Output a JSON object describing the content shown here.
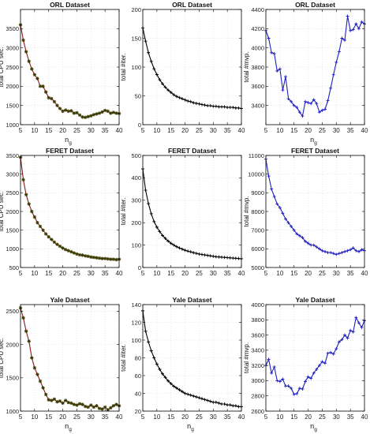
{
  "chart_data": [
    {
      "id": "orl-cpu",
      "type": "line",
      "title": "ORL Dataset",
      "xlabel": "n",
      "xlabel_sub": "g",
      "ylabel": "total CPU sec.",
      "xlim": [
        5,
        40
      ],
      "ylim": [
        1000,
        4000
      ],
      "xticks": [
        5,
        10,
        15,
        20,
        25,
        30,
        35,
        40
      ],
      "yticks": [
        1000,
        1500,
        2000,
        2500,
        3000,
        3500
      ],
      "color": "#8b1a1a",
      "marker": "star",
      "grid": true,
      "x": [
        5,
        6,
        7,
        8,
        9,
        10,
        11,
        12,
        13,
        14,
        15,
        16,
        17,
        18,
        19,
        20,
        21,
        22,
        23,
        24,
        25,
        26,
        27,
        28,
        29,
        30,
        31,
        32,
        33,
        34,
        35,
        36,
        37,
        38,
        39,
        40
      ],
      "y": [
        3600,
        3200,
        2900,
        2650,
        2450,
        2300,
        2200,
        2000,
        2000,
        1850,
        1700,
        1680,
        1600,
        1500,
        1420,
        1350,
        1380,
        1350,
        1360,
        1300,
        1310,
        1250,
        1200,
        1190,
        1210,
        1230,
        1260,
        1280,
        1300,
        1330,
        1370,
        1350,
        1300,
        1320,
        1300,
        1290
      ]
    },
    {
      "id": "orl-iter",
      "type": "line",
      "title": "ORL Dataset",
      "xlabel": "",
      "ylabel": "total #iter.",
      "xlim": [
        5,
        40
      ],
      "ylim": [
        0,
        200
      ],
      "xticks": [
        5,
        10,
        15,
        20,
        25,
        30,
        35,
        40
      ],
      "yticks": [
        0,
        50,
        100,
        150,
        200
      ],
      "color": "#000000",
      "marker": "plus",
      "grid": true,
      "x": [
        5,
        6,
        7,
        8,
        9,
        10,
        11,
        12,
        13,
        14,
        15,
        16,
        17,
        18,
        19,
        20,
        21,
        22,
        23,
        24,
        25,
        26,
        27,
        28,
        29,
        30,
        31,
        32,
        33,
        34,
        35,
        36,
        37,
        38,
        39,
        40
      ],
      "y": [
        168,
        145,
        125,
        110,
        97,
        87,
        78,
        71,
        65,
        60,
        56,
        52,
        49,
        47,
        45,
        43,
        41,
        40,
        38,
        37,
        36,
        35,
        34,
        33,
        33,
        32,
        32,
        31,
        31,
        31,
        30,
        30,
        30,
        29,
        29,
        28
      ]
    },
    {
      "id": "orl-mvp",
      "type": "line",
      "title": "ORL Dataset",
      "xlabel": "n",
      "xlabel_sub": "g",
      "ylabel": "total #mvp.",
      "xlim": [
        5,
        40
      ],
      "ylim": [
        3200,
        4400
      ],
      "xticks": [
        5,
        10,
        15,
        20,
        25,
        30,
        35,
        40
      ],
      "yticks": [
        3400,
        3600,
        3800,
        4000,
        4200,
        4400
      ],
      "color": "#1f1fbf",
      "marker": "plus",
      "grid": true,
      "x": [
        5,
        6,
        7,
        8,
        9,
        10,
        11,
        12,
        13,
        14,
        15,
        16,
        17,
        18,
        19,
        20,
        21,
        22,
        23,
        24,
        25,
        26,
        27,
        28,
        29,
        30,
        31,
        32,
        33,
        34,
        35,
        36,
        37,
        38,
        39,
        40
      ],
      "y": [
        4180,
        4100,
        3950,
        3940,
        3760,
        3780,
        3560,
        3700,
        3470,
        3440,
        3400,
        3380,
        3330,
        3290,
        3440,
        3430,
        3420,
        3460,
        3420,
        3330,
        3350,
        3360,
        3450,
        3580,
        3720,
        3850,
        3960,
        4100,
        4080,
        4330,
        4180,
        4190,
        4250,
        4200,
        4270,
        4250
      ]
    },
    {
      "id": "feret-cpu",
      "type": "line",
      "title": "FERET Dataset",
      "xlabel": "",
      "ylabel": "total CPU sec.",
      "xlim": [
        5,
        40
      ],
      "ylim": [
        500,
        3500
      ],
      "xticks": [
        5,
        10,
        15,
        20,
        25,
        30,
        35,
        40
      ],
      "yticks": [
        500,
        1000,
        1500,
        2000,
        2500,
        3000,
        3500
      ],
      "color": "#8b1a1a",
      "marker": "star",
      "grid": true,
      "x": [
        5,
        6,
        7,
        8,
        9,
        10,
        11,
        12,
        13,
        14,
        15,
        16,
        17,
        18,
        19,
        20,
        21,
        22,
        23,
        24,
        25,
        26,
        27,
        28,
        29,
        30,
        31,
        32,
        33,
        34,
        35,
        36,
        37,
        38,
        39,
        40
      ],
      "y": [
        3450,
        2850,
        2450,
        2200,
        2000,
        1850,
        1700,
        1600,
        1500,
        1400,
        1320,
        1250,
        1180,
        1120,
        1070,
        1020,
        980,
        950,
        920,
        890,
        860,
        840,
        830,
        810,
        800,
        780,
        770,
        760,
        750,
        740,
        740,
        730,
        720,
        720,
        710,
        720
      ]
    },
    {
      "id": "feret-iter",
      "type": "line",
      "title": "FERET Dataset",
      "xlabel": "",
      "ylabel": "total #iter.",
      "xlim": [
        5,
        40
      ],
      "ylim": [
        0,
        500
      ],
      "xticks": [
        5,
        10,
        15,
        20,
        25,
        30,
        35,
        40
      ],
      "yticks": [
        0,
        100,
        200,
        300,
        400,
        500
      ],
      "color": "#000000",
      "marker": "plus",
      "grid": true,
      "x": [
        5,
        6,
        7,
        8,
        9,
        10,
        11,
        12,
        13,
        14,
        15,
        16,
        17,
        18,
        19,
        20,
        21,
        22,
        23,
        24,
        25,
        26,
        27,
        28,
        29,
        30,
        31,
        32,
        33,
        34,
        35,
        36,
        37,
        38,
        39,
        40
      ],
      "y": [
        440,
        345,
        285,
        240,
        205,
        180,
        160,
        143,
        130,
        118,
        108,
        100,
        93,
        87,
        82,
        77,
        73,
        70,
        66,
        63,
        60,
        58,
        56,
        54,
        52,
        50,
        48,
        47,
        46,
        45,
        44,
        43,
        42,
        41,
        40,
        39
      ]
    },
    {
      "id": "feret-mvp",
      "type": "line",
      "title": "FERET Dataset",
      "xlabel": "",
      "ylabel": "total #mvp.",
      "xlim": [
        5,
        40
      ],
      "ylim": [
        5000,
        11000
      ],
      "xticks": [
        5,
        10,
        15,
        20,
        25,
        30,
        35,
        40
      ],
      "yticks": [
        5000,
        6000,
        7000,
        8000,
        9000,
        10000,
        11000
      ],
      "color": "#1f1fbf",
      "marker": "plus",
      "grid": true,
      "x": [
        5,
        6,
        7,
        8,
        9,
        10,
        11,
        12,
        13,
        14,
        15,
        16,
        17,
        18,
        19,
        20,
        21,
        22,
        23,
        24,
        25,
        26,
        27,
        28,
        29,
        30,
        31,
        32,
        33,
        34,
        35,
        36,
        37,
        38,
        39,
        40
      ],
      "y": [
        10800,
        9900,
        9200,
        8800,
        8400,
        8200,
        7900,
        7600,
        7400,
        7200,
        7000,
        6800,
        6700,
        6600,
        6400,
        6300,
        6200,
        6200,
        6100,
        6000,
        5900,
        5850,
        5800,
        5800,
        5750,
        5700,
        5750,
        5800,
        5850,
        5900,
        5950,
        6050,
        5900,
        5850,
        5950,
        5900
      ]
    },
    {
      "id": "yale-cpu",
      "type": "line",
      "title": "Yale Dataset",
      "xlabel": "n",
      "xlabel_sub": "g",
      "ylabel": "total CPU sec.",
      "xlim": [
        5,
        40
      ],
      "ylim": [
        1000,
        2600
      ],
      "xticks": [
        5,
        10,
        15,
        20,
        25,
        30,
        35,
        40
      ],
      "yticks": [
        1000,
        1500,
        2000,
        2500
      ],
      "color": "#8b1a1a",
      "marker": "star",
      "grid": true,
      "x": [
        5,
        6,
        7,
        8,
        9,
        10,
        11,
        12,
        13,
        14,
        15,
        16,
        17,
        18,
        19,
        20,
        21,
        22,
        23,
        24,
        25,
        26,
        27,
        28,
        29,
        30,
        31,
        32,
        33,
        34,
        35,
        36,
        37,
        38,
        39,
        40
      ],
      "y": [
        2550,
        2400,
        2200,
        2050,
        1800,
        1650,
        1550,
        1450,
        1350,
        1250,
        1170,
        1160,
        1180,
        1140,
        1150,
        1120,
        1160,
        1130,
        1120,
        1100,
        1090,
        1110,
        1100,
        1070,
        1060,
        1090,
        1060,
        1080,
        1040,
        1030,
        1060,
        1020,
        1050,
        1080,
        1100,
        1080
      ]
    },
    {
      "id": "yale-iter",
      "type": "line",
      "title": "Yale Dataset",
      "xlabel": "n",
      "xlabel_sub": "g",
      "ylabel": "total #iter.",
      "xlim": [
        5,
        40
      ],
      "ylim": [
        20,
        140
      ],
      "xticks": [
        5,
        10,
        15,
        20,
        25,
        30,
        35,
        40
      ],
      "yticks": [
        20,
        40,
        60,
        80,
        100,
        120,
        140
      ],
      "color": "#000000",
      "marker": "plus",
      "grid": true,
      "x": [
        5,
        6,
        7,
        8,
        9,
        10,
        11,
        12,
        13,
        14,
        15,
        16,
        17,
        18,
        19,
        20,
        21,
        22,
        23,
        24,
        25,
        26,
        27,
        28,
        29,
        30,
        31,
        32,
        33,
        34,
        35,
        36,
        37,
        38,
        39,
        40
      ],
      "y": [
        133,
        110,
        98,
        88,
        80,
        73,
        67,
        62,
        58,
        54,
        51,
        48,
        46,
        44,
        42,
        40,
        39,
        38,
        37,
        36,
        35,
        34,
        33,
        32,
        31,
        30,
        30,
        29,
        28,
        28,
        27,
        27,
        26,
        26,
        25,
        25
      ]
    },
    {
      "id": "yale-mvp",
      "type": "line",
      "title": "Yale Dataset",
      "xlabel": "n",
      "xlabel_sub": "g",
      "ylabel": "total #mvp.",
      "xlim": [
        5,
        40
      ],
      "ylim": [
        2600,
        4000
      ],
      "xticks": [
        5,
        10,
        15,
        20,
        25,
        30,
        35,
        40
      ],
      "yticks": [
        2600,
        2800,
        3000,
        3200,
        3400,
        3600,
        3800,
        4000
      ],
      "color": "#1f1fbf",
      "marker": "plus",
      "grid": true,
      "x": [
        5,
        6,
        7,
        8,
        9,
        10,
        11,
        12,
        13,
        14,
        15,
        16,
        17,
        18,
        19,
        20,
        21,
        22,
        23,
        24,
        25,
        26,
        27,
        28,
        29,
        30,
        31,
        32,
        33,
        34,
        35,
        36,
        37,
        38,
        39,
        40
      ],
      "y": [
        3200,
        3280,
        3100,
        3180,
        3000,
        2990,
        3020,
        2930,
        2930,
        2900,
        2820,
        2830,
        2900,
        2890,
        2990,
        3050,
        3030,
        3100,
        3150,
        3200,
        3250,
        3230,
        3360,
        3370,
        3350,
        3420,
        3510,
        3540,
        3600,
        3560,
        3660,
        3640,
        3830,
        3760,
        3700,
        3790
      ]
    }
  ]
}
